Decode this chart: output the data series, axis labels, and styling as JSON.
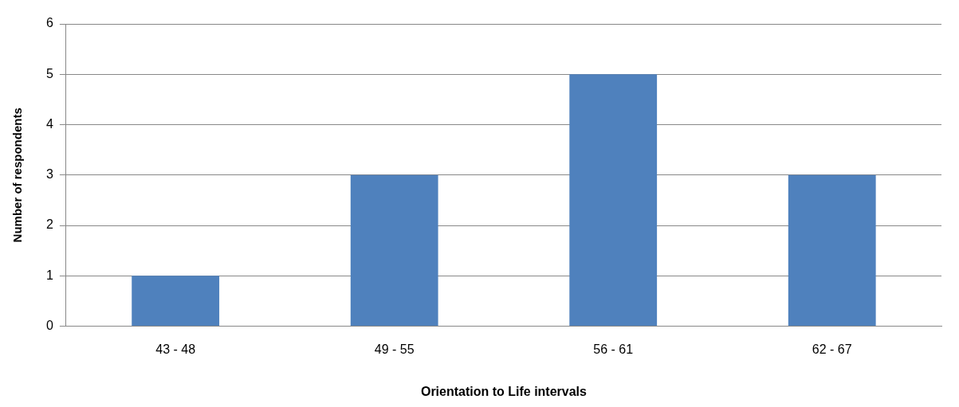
{
  "chart_data": {
    "type": "bar",
    "xlabel": "Orientation to Life intervals",
    "ylabel": "Number of respondents",
    "categories": [
      "43 - 48",
      "49 - 55",
      "56 - 61",
      "62 - 67"
    ],
    "values": [
      1,
      3,
      5,
      3
    ],
    "color": "#4f81bd",
    "ylim": [
      0,
      6
    ],
    "yticks": [
      0,
      1,
      2,
      3,
      4,
      5,
      6
    ],
    "grid": "y",
    "legend": false
  }
}
